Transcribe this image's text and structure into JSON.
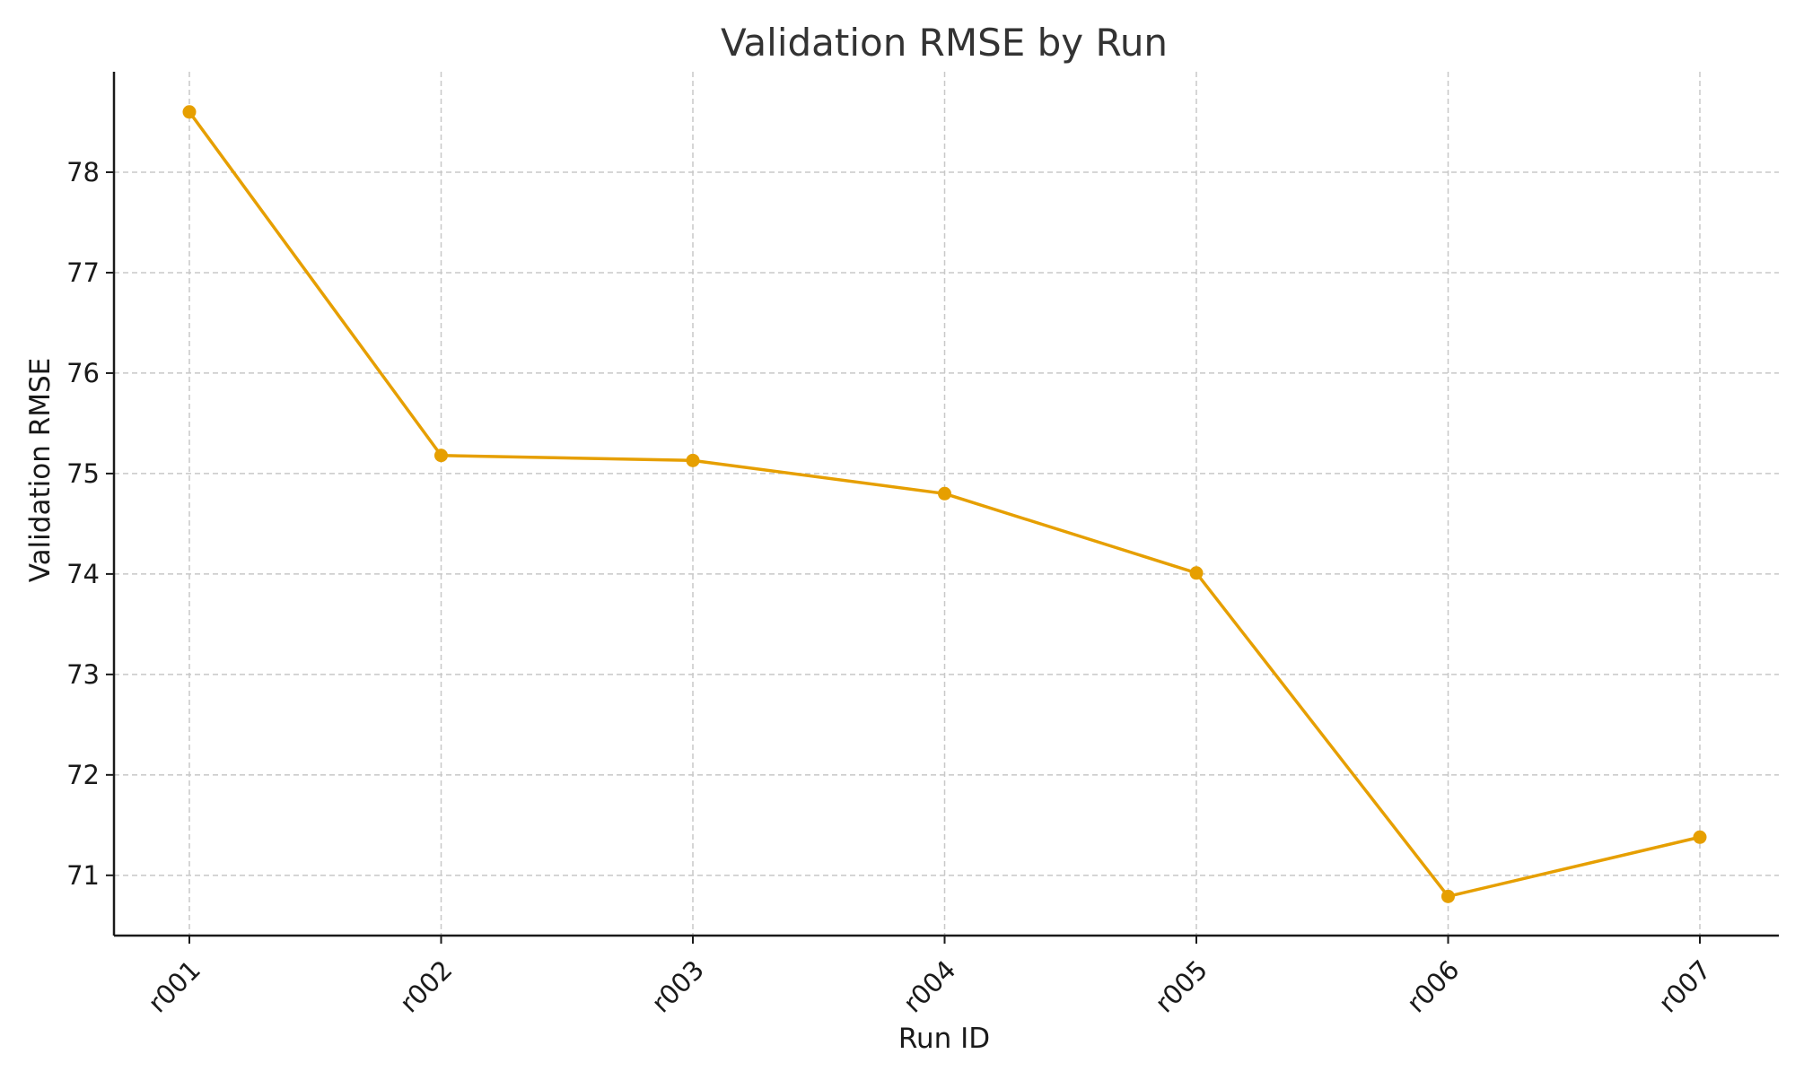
{
  "chart_data": {
    "type": "line",
    "title": "Validation RMSE by Run",
    "xlabel": "Run ID",
    "ylabel": "Validation RMSE",
    "categories": [
      "r001",
      "r002",
      "r003",
      "r004",
      "r005",
      "r006",
      "r007"
    ],
    "series": [
      {
        "values": [
          78.6,
          75.18,
          75.13,
          74.8,
          74.01,
          70.79,
          71.38
        ],
        "color": "#E69F00",
        "marker": "circle"
      }
    ],
    "ylim": [
      70.4,
      79.0
    ],
    "yticks": [
      71,
      72,
      73,
      74,
      75,
      76,
      77,
      78
    ],
    "grid": true,
    "legend": "none"
  }
}
